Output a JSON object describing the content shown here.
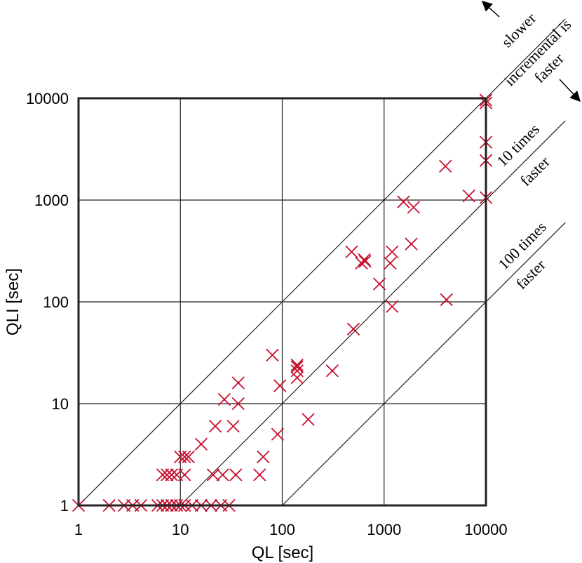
{
  "chart_data": {
    "type": "scatter",
    "xlabel": "QL [sec]",
    "ylabel": "QLI [sec]",
    "xscale": "log",
    "yscale": "log",
    "xlim": [
      1,
      10000
    ],
    "ylim": [
      1,
      10000
    ],
    "grid": true,
    "x_ticks": [
      "1",
      "10",
      "100",
      "1000",
      "10000"
    ],
    "y_ticks": [
      "1",
      "10",
      "100",
      "1000",
      "10000"
    ],
    "reference_lines": [
      {
        "ratio": 1
      },
      {
        "ratio": 10
      },
      {
        "ratio": 100
      }
    ],
    "annotations": {
      "slower": "slower",
      "incremental_is": "incremental is",
      "faster": "faster",
      "ten_times": "10 times",
      "ten_faster": "faster",
      "hundred_times": "100 times",
      "hundred_faster": "faster"
    },
    "marker_color": "#c8102e",
    "points": [
      [
        1,
        1
      ],
      [
        2,
        1
      ],
      [
        2.8,
        1
      ],
      [
        3.4,
        1
      ],
      [
        4.1,
        1
      ],
      [
        6,
        1
      ],
      [
        6.7,
        1
      ],
      [
        7.4,
        1
      ],
      [
        8.2,
        1
      ],
      [
        9.2,
        1
      ],
      [
        10,
        1
      ],
      [
        11,
        1
      ],
      [
        13,
        1
      ],
      [
        16,
        1
      ],
      [
        20,
        1
      ],
      [
        25,
        1
      ],
      [
        30,
        1
      ],
      [
        6.7,
        2
      ],
      [
        7.4,
        2
      ],
      [
        8.2,
        2
      ],
      [
        9.2,
        2
      ],
      [
        11,
        2
      ],
      [
        21,
        2
      ],
      [
        26,
        2
      ],
      [
        35,
        2
      ],
      [
        60,
        2
      ],
      [
        10,
        3
      ],
      [
        11,
        3
      ],
      [
        12,
        3
      ],
      [
        65,
        3
      ],
      [
        16,
        4
      ],
      [
        90,
        5
      ],
      [
        22,
        6
      ],
      [
        33,
        6
      ],
      [
        180,
        7
      ],
      [
        27,
        11
      ],
      [
        37,
        10
      ],
      [
        95,
        15
      ],
      [
        37,
        16
      ],
      [
        140,
        18
      ],
      [
        140,
        21
      ],
      [
        140,
        23
      ],
      [
        140,
        24
      ],
      [
        310,
        21
      ],
      [
        80,
        30
      ],
      [
        500,
        54
      ],
      [
        900,
        150
      ],
      [
        1200,
        90
      ],
      [
        4100,
        105
      ],
      [
        480,
        310
      ],
      [
        600,
        240
      ],
      [
        640,
        260
      ],
      [
        650,
        250
      ],
      [
        1150,
        240
      ],
      [
        1200,
        310
      ],
      [
        1850,
        370
      ],
      [
        1550,
        960
      ],
      [
        1950,
        850
      ],
      [
        6800,
        1100
      ],
      [
        10000,
        1060
      ],
      [
        4000,
        2150
      ],
      [
        10000,
        3700
      ],
      [
        10000,
        2450
      ],
      [
        10000,
        9000
      ],
      [
        10000,
        9600
      ]
    ]
  }
}
